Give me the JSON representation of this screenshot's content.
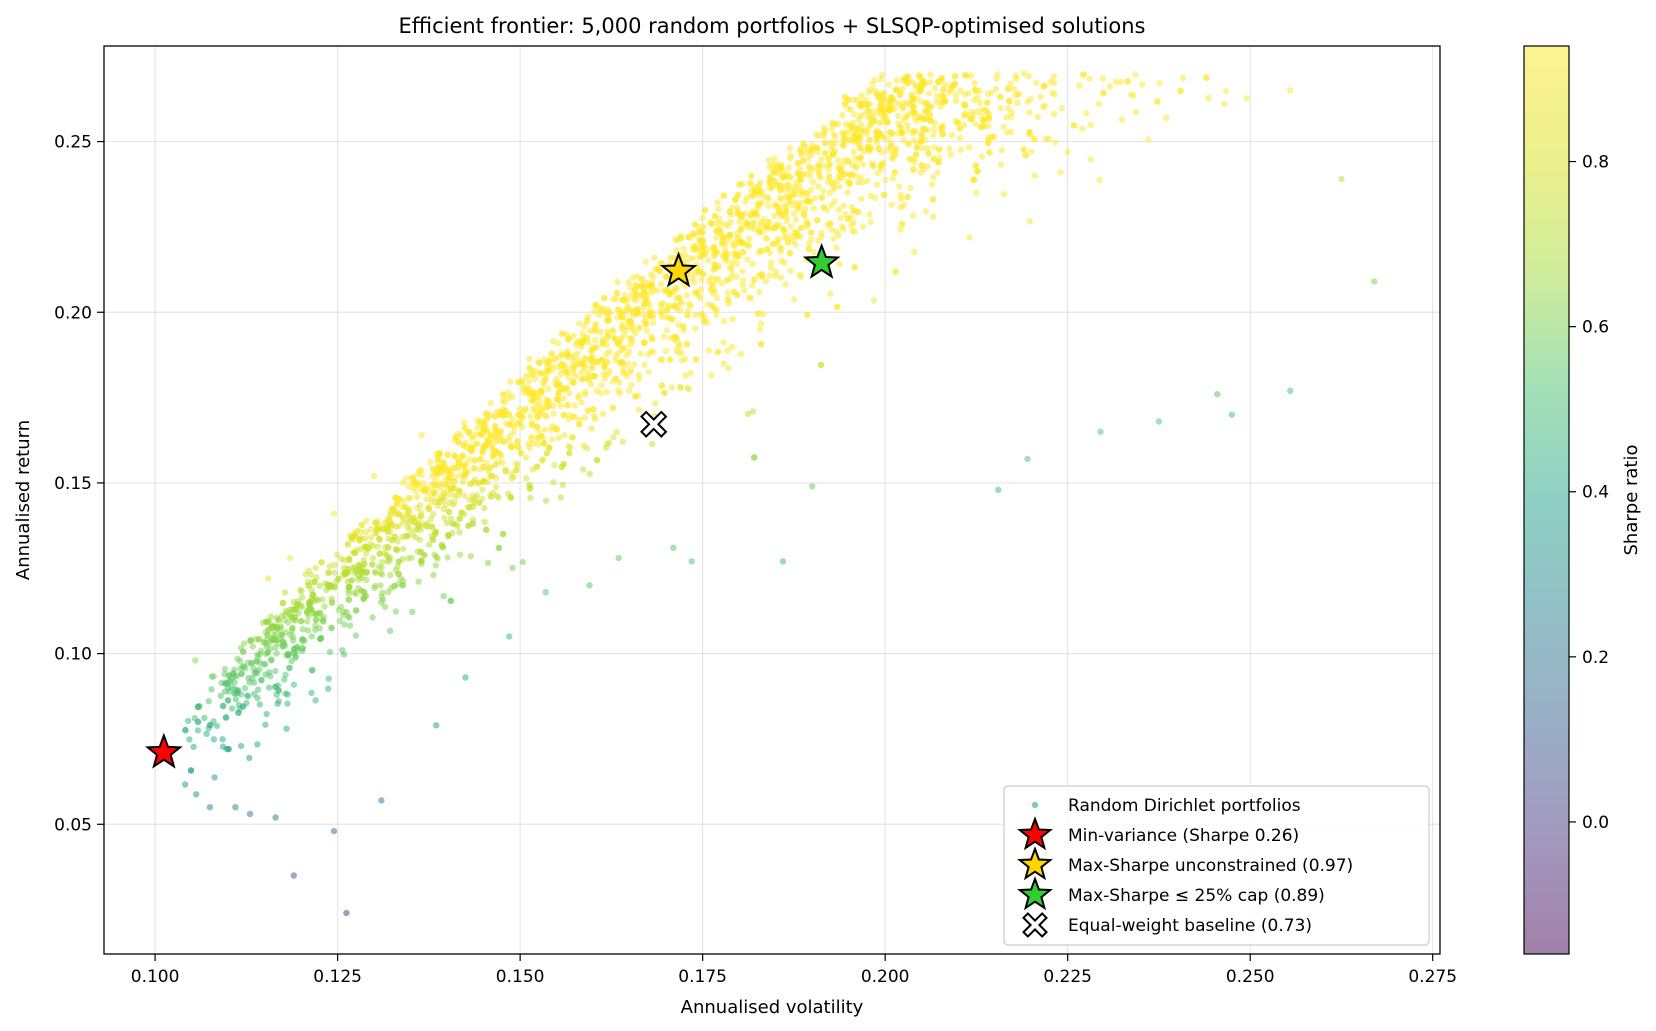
{
  "chart_data": {
    "type": "scatter",
    "title": "Efficient frontier: 5,000 random portfolios + SLSQP-optimised solutions",
    "xlabel": "Annualised volatility",
    "ylabel": "Annualised return",
    "xlim": [
      0.093,
      0.276
    ],
    "ylim": [
      0.012,
      0.278
    ],
    "x_ticks": [
      {
        "value": 0.1,
        "label": "0.100"
      },
      {
        "value": 0.125,
        "label": "0.125"
      },
      {
        "value": 0.15,
        "label": "0.150"
      },
      {
        "value": 0.175,
        "label": "0.175"
      },
      {
        "value": 0.2,
        "label": "0.200"
      },
      {
        "value": 0.225,
        "label": "0.225"
      },
      {
        "value": 0.25,
        "label": "0.250"
      },
      {
        "value": 0.275,
        "label": "0.275"
      }
    ],
    "y_ticks": [
      {
        "value": 0.05,
        "label": "0.05"
      },
      {
        "value": 0.1,
        "label": "0.10"
      },
      {
        "value": 0.15,
        "label": "0.15"
      },
      {
        "value": 0.2,
        "label": "0.20"
      },
      {
        "value": 0.25,
        "label": "0.25"
      }
    ],
    "grid": true,
    "legend_position": "lower-right",
    "colorbar": {
      "label": "Sharpe ratio",
      "colormap": "viridis",
      "alpha": 0.5,
      "range": [
        -0.16,
        0.94
      ],
      "ticks": [
        {
          "value": 0.0,
          "label": "0.0"
        },
        {
          "value": 0.2,
          "label": "0.2"
        },
        {
          "value": 0.4,
          "label": "0.4"
        },
        {
          "value": 0.6,
          "label": "0.6"
        },
        {
          "value": 0.8,
          "label": "0.8"
        }
      ]
    },
    "scatter_series": {
      "name": "Random Dirichlet portfolios",
      "count_described": "5,000",
      "sample_points": [
        [
          0.1055,
          0.098
        ],
        [
          0.1075,
          0.055
        ],
        [
          0.1095,
          0.094
        ],
        [
          0.111,
          0.055
        ],
        [
          0.113,
          0.053
        ],
        [
          0.1165,
          0.052
        ],
        [
          0.118,
          0.078
        ],
        [
          0.119,
          0.035
        ],
        [
          0.1245,
          0.048
        ],
        [
          0.1262,
          0.024
        ],
        [
          0.131,
          0.057
        ],
        [
          0.1385,
          0.079
        ],
        [
          0.1425,
          0.093
        ],
        [
          0.1485,
          0.105
        ],
        [
          0.1535,
          0.118
        ],
        [
          0.1595,
          0.12
        ],
        [
          0.1635,
          0.128
        ],
        [
          0.171,
          0.131
        ],
        [
          0.1735,
          0.127
        ],
        [
          0.186,
          0.127
        ],
        [
          0.19,
          0.149
        ],
        [
          0.2155,
          0.148
        ],
        [
          0.2195,
          0.157
        ],
        [
          0.2295,
          0.165
        ],
        [
          0.2375,
          0.168
        ],
        [
          0.2455,
          0.176
        ],
        [
          0.2475,
          0.17
        ],
        [
          0.2555,
          0.177
        ],
        [
          0.2625,
          0.239
        ],
        [
          0.267,
          0.209
        ],
        [
          0.2555,
          0.265
        ],
        [
          0.2465,
          0.261
        ],
        [
          0.2385,
          0.257
        ],
        [
          0.225,
          0.247
        ],
        [
          0.2205,
          0.24
        ],
        [
          0.2125,
          0.235
        ],
        [
          0.1955,
          0.224
        ],
        [
          0.183,
          0.218
        ],
        [
          0.172,
          0.203
        ],
        [
          0.164,
          0.195
        ],
        [
          0.155,
          0.184
        ],
        [
          0.1455,
          0.165
        ],
        [
          0.1365,
          0.164
        ],
        [
          0.13,
          0.152
        ],
        [
          0.1245,
          0.141
        ],
        [
          0.1185,
          0.128
        ],
        [
          0.1155,
          0.122
        ]
      ]
    },
    "highlighted_points": [
      {
        "name": "Min-variance (Sharpe 0.26)",
        "x": 0.1012,
        "y": 0.071,
        "marker": "star",
        "color": "#ff0000"
      },
      {
        "name": "Max-Sharpe unconstrained (0.97)",
        "x": 0.1717,
        "y": 0.212,
        "marker": "star",
        "color": "#ffd700"
      },
      {
        "name": "Max-Sharpe ≤ 25% cap (0.89)",
        "x": 0.1913,
        "y": 0.2145,
        "marker": "star",
        "color": "#32cd32"
      },
      {
        "name": "Equal-weight baseline (0.73)",
        "x": 0.1683,
        "y": 0.1672,
        "marker": "X",
        "color": "#ffffff"
      }
    ]
  }
}
